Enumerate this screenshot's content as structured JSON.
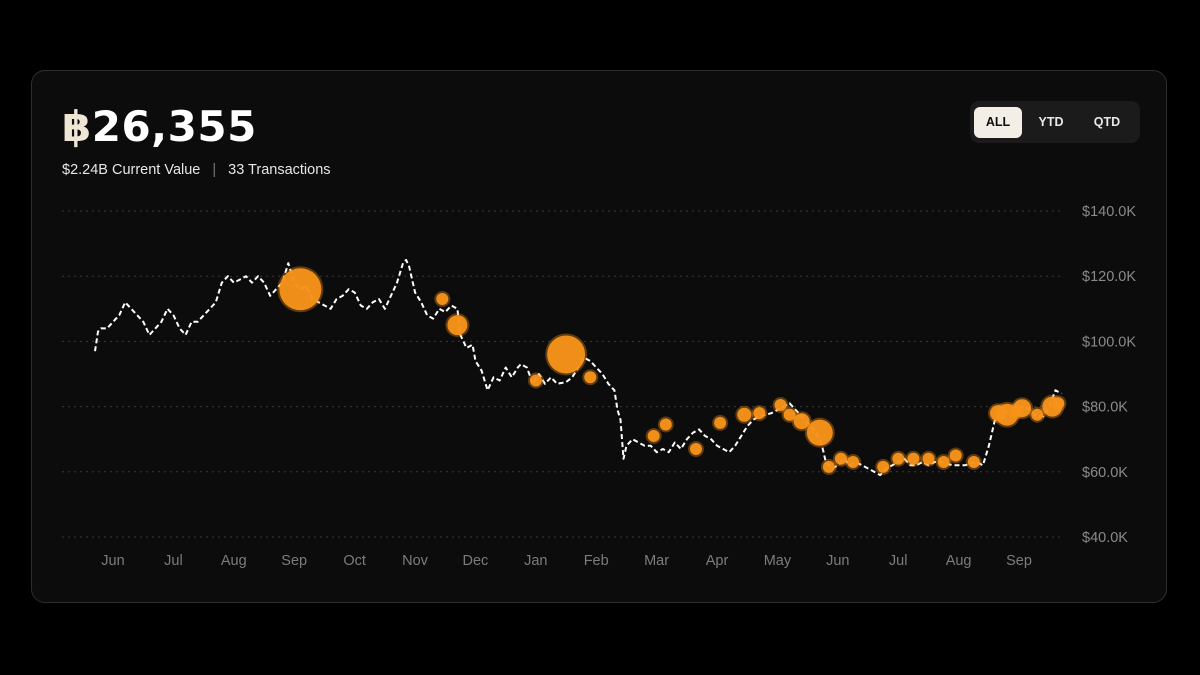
{
  "header": {
    "currency_symbol": "฿",
    "amount": "26,355",
    "current_value": "$2.24B Current Value",
    "separator": "|",
    "transactions": "33 Transactions"
  },
  "range_toggle": {
    "options": [
      "ALL",
      "YTD",
      "QTD"
    ],
    "selected": "ALL"
  },
  "colors": {
    "line": "#ffffff",
    "marker": "#f7931a",
    "grid": "#3a3a3a",
    "accent_active": "#f3efe6"
  },
  "chart_data": {
    "type": "line",
    "title": "",
    "xlabel": "",
    "ylabel": "",
    "x_ticks": [
      "Jun",
      "Jul",
      "Aug",
      "Sep",
      "Oct",
      "Nov",
      "Dec",
      "Jan",
      "Feb",
      "Mar",
      "Apr",
      "May",
      "Jun",
      "Jul",
      "Aug",
      "Sep"
    ],
    "y_ticks": [
      "$140.0K",
      "$120.0K",
      "$100.0K",
      "$80.0K",
      "$60.0K",
      "$40.0K"
    ],
    "ylim": [
      40000,
      140000
    ],
    "grid": "horizontal dotted",
    "line_style": "dashed",
    "series": [
      {
        "values": [
          [
            0.0,
            97000
          ],
          [
            0.05,
            103000
          ],
          [
            0.1,
            104000
          ],
          [
            0.2,
            104000
          ],
          [
            0.3,
            106000
          ],
          [
            0.4,
            108000
          ],
          [
            0.5,
            112000
          ],
          [
            0.6,
            110000
          ],
          [
            0.7,
            108000
          ],
          [
            0.8,
            106000
          ],
          [
            0.9,
            102000
          ],
          [
            1.0,
            104000
          ],
          [
            1.1,
            106000
          ],
          [
            1.2,
            110000
          ],
          [
            1.3,
            108000
          ],
          [
            1.4,
            104000
          ],
          [
            1.5,
            102000
          ],
          [
            1.6,
            106000
          ],
          [
            1.7,
            106000
          ],
          [
            1.8,
            108000
          ],
          [
            1.9,
            110000
          ],
          [
            2.0,
            112000
          ],
          [
            2.1,
            118000
          ],
          [
            2.2,
            120000
          ],
          [
            2.3,
            118000
          ],
          [
            2.4,
            119000
          ],
          [
            2.5,
            120000
          ],
          [
            2.6,
            118000
          ],
          [
            2.7,
            120000
          ],
          [
            2.8,
            118000
          ],
          [
            2.9,
            114000
          ],
          [
            3.0,
            116000
          ],
          [
            3.1,
            118000
          ],
          [
            3.2,
            124000
          ],
          [
            3.3,
            118000
          ],
          [
            3.4,
            116000
          ],
          [
            3.5,
            117000
          ],
          [
            3.6,
            113000
          ],
          [
            3.7,
            112000
          ],
          [
            3.8,
            111000
          ],
          [
            3.9,
            110000
          ],
          [
            4.0,
            113000
          ],
          [
            4.1,
            114000
          ],
          [
            4.2,
            116000
          ],
          [
            4.3,
            115000
          ],
          [
            4.4,
            111000
          ],
          [
            4.5,
            110000
          ],
          [
            4.6,
            112000
          ],
          [
            4.7,
            113000
          ],
          [
            4.8,
            110000
          ],
          [
            4.85,
            112000
          ],
          [
            5.0,
            118000
          ],
          [
            5.1,
            124000
          ],
          [
            5.15,
            125000
          ],
          [
            5.2,
            123000
          ],
          [
            5.3,
            115000
          ],
          [
            5.4,
            112000
          ],
          [
            5.5,
            108000
          ],
          [
            5.6,
            107000
          ],
          [
            5.7,
            110000
          ],
          [
            5.8,
            109000
          ],
          [
            5.9,
            111000
          ],
          [
            6.0,
            110000
          ],
          [
            6.05,
            102000
          ],
          [
            6.15,
            98000
          ],
          [
            6.25,
            99000
          ],
          [
            6.3,
            94000
          ],
          [
            6.4,
            91000
          ],
          [
            6.5,
            85000
          ],
          [
            6.6,
            89000
          ],
          [
            6.7,
            88000
          ],
          [
            6.8,
            92000
          ],
          [
            6.9,
            89000
          ],
          [
            7.0,
            92000
          ],
          [
            7.05,
            93000
          ],
          [
            7.15,
            92000
          ],
          [
            7.25,
            87000
          ],
          [
            7.35,
            90000
          ],
          [
            7.45,
            87000
          ],
          [
            7.55,
            89000
          ],
          [
            7.65,
            87000
          ],
          [
            7.8,
            87500
          ],
          [
            7.9,
            89000
          ],
          [
            8.0,
            92000
          ],
          [
            8.1,
            95000
          ],
          [
            8.2,
            94000
          ],
          [
            8.3,
            92000
          ],
          [
            8.4,
            90000
          ],
          [
            8.5,
            87000
          ],
          [
            8.6,
            85000
          ],
          [
            8.65,
            79000
          ],
          [
            8.7,
            76000
          ],
          [
            8.75,
            64000
          ],
          [
            8.8,
            68000
          ],
          [
            8.9,
            70000
          ],
          [
            9.0,
            69000
          ],
          [
            9.1,
            68000
          ],
          [
            9.2,
            68000
          ],
          [
            9.3,
            66000
          ],
          [
            9.4,
            67000
          ],
          [
            9.5,
            66000
          ],
          [
            9.6,
            69000
          ],
          [
            9.7,
            67000
          ],
          [
            9.8,
            70000
          ],
          [
            9.9,
            72000
          ],
          [
            10.0,
            73000
          ],
          [
            10.1,
            71000
          ],
          [
            10.2,
            70000
          ],
          [
            10.3,
            68000
          ],
          [
            10.4,
            67000
          ],
          [
            10.5,
            66000
          ],
          [
            10.6,
            68000
          ],
          [
            10.7,
            71000
          ],
          [
            10.8,
            74000
          ],
          [
            10.9,
            76000
          ],
          [
            11.0,
            77000
          ],
          [
            11.1,
            77500
          ],
          [
            11.2,
            78000
          ],
          [
            11.3,
            79000
          ],
          [
            11.4,
            80000
          ],
          [
            11.5,
            81000
          ],
          [
            11.6,
            79000
          ],
          [
            11.7,
            77000
          ],
          [
            11.8,
            75000
          ],
          [
            11.9,
            73000
          ],
          [
            12.0,
            70000
          ],
          [
            12.05,
            67000
          ],
          [
            12.1,
            63000
          ],
          [
            12.2,
            61000
          ],
          [
            12.3,
            62000
          ],
          [
            12.4,
            64000
          ],
          [
            12.5,
            62000
          ],
          [
            12.6,
            63000
          ],
          [
            12.7,
            62000
          ],
          [
            12.8,
            61000
          ],
          [
            12.9,
            60000
          ],
          [
            13.0,
            59000
          ],
          [
            13.1,
            61000
          ],
          [
            13.2,
            62000
          ],
          [
            13.3,
            63000
          ],
          [
            13.4,
            64000
          ],
          [
            13.5,
            62000
          ],
          [
            13.6,
            62000
          ],
          [
            13.7,
            63000
          ],
          [
            13.8,
            62000
          ],
          [
            13.9,
            63000
          ],
          [
            14.0,
            63000
          ],
          [
            14.2,
            62000
          ],
          [
            14.4,
            62000
          ],
          [
            14.6,
            63000
          ],
          [
            14.7,
            62000
          ],
          [
            14.8,
            68000
          ],
          [
            14.9,
            76000
          ],
          [
            15.0,
            78000
          ],
          [
            15.2,
            79000
          ],
          [
            15.4,
            80000
          ],
          [
            15.6,
            77000
          ],
          [
            15.7,
            77000
          ],
          [
            15.8,
            80000
          ],
          [
            15.9,
            85000
          ],
          [
            16.0,
            84000
          ]
        ]
      }
    ],
    "transactions": [
      {
        "x": 3.4,
        "y": 116000,
        "size": 21
      },
      {
        "x": 5.75,
        "y": 113000,
        "size": 6
      },
      {
        "x": 6.0,
        "y": 105000,
        "size": 10
      },
      {
        "x": 7.3,
        "y": 88000,
        "size": 6
      },
      {
        "x": 7.8,
        "y": 96000,
        "size": 19
      },
      {
        "x": 8.2,
        "y": 89000,
        "size": 6
      },
      {
        "x": 9.25,
        "y": 71000,
        "size": 6
      },
      {
        "x": 9.45,
        "y": 74500,
        "size": 6
      },
      {
        "x": 9.95,
        "y": 67000,
        "size": 6
      },
      {
        "x": 10.35,
        "y": 75000,
        "size": 6
      },
      {
        "x": 10.75,
        "y": 77500,
        "size": 7
      },
      {
        "x": 11.0,
        "y": 78000,
        "size": 6
      },
      {
        "x": 11.35,
        "y": 80500,
        "size": 6
      },
      {
        "x": 11.5,
        "y": 77500,
        "size": 6
      },
      {
        "x": 11.7,
        "y": 75500,
        "size": 8
      },
      {
        "x": 12.0,
        "y": 72000,
        "size": 13
      },
      {
        "x": 12.15,
        "y": 61500,
        "size": 6
      },
      {
        "x": 12.35,
        "y": 64000,
        "size": 6
      },
      {
        "x": 12.55,
        "y": 63000,
        "size": 6
      },
      {
        "x": 13.05,
        "y": 61500,
        "size": 6
      },
      {
        "x": 13.3,
        "y": 64000,
        "size": 6
      },
      {
        "x": 13.55,
        "y": 64000,
        "size": 6
      },
      {
        "x": 13.8,
        "y": 64000,
        "size": 6
      },
      {
        "x": 14.05,
        "y": 63000,
        "size": 6
      },
      {
        "x": 14.25,
        "y": 65000,
        "size": 6
      },
      {
        "x": 14.55,
        "y": 63000,
        "size": 6
      },
      {
        "x": 14.95,
        "y": 78000,
        "size": 8
      },
      {
        "x": 15.1,
        "y": 77500,
        "size": 11
      },
      {
        "x": 15.25,
        "y": 78500,
        "size": 6
      },
      {
        "x": 15.35,
        "y": 79500,
        "size": 9
      },
      {
        "x": 15.6,
        "y": 77500,
        "size": 6
      },
      {
        "x": 15.85,
        "y": 80000,
        "size": 10
      },
      {
        "x": 15.95,
        "y": 81000,
        "size": 6
      }
    ]
  }
}
